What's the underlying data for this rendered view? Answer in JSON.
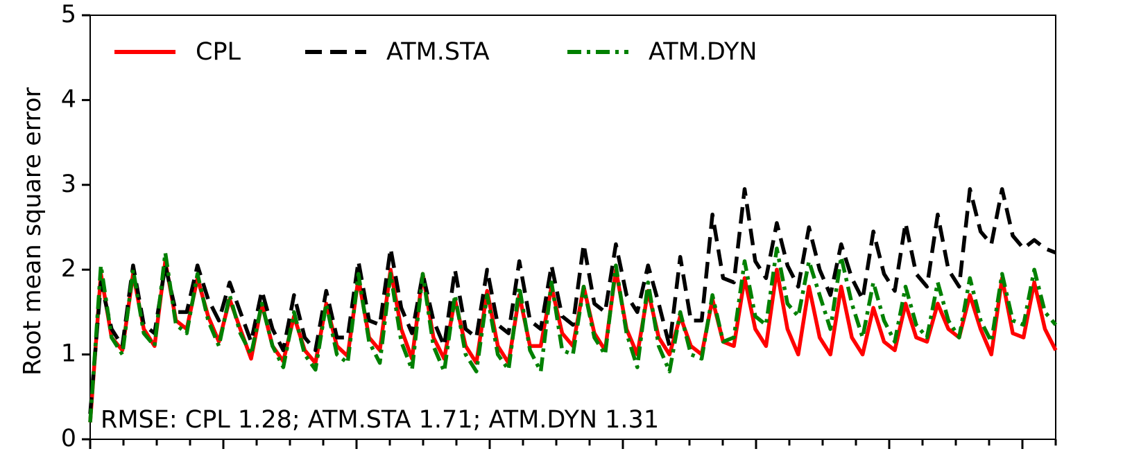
{
  "chart_data": {
    "type": "line",
    "y_label": "Root mean square error",
    "annotation": "RMSE: CPL 1.28; ATM.STA 1.71; ATM.DYN 1.31",
    "categories": [
      null,
      null,
      null,
      null,
      null,
      null,
      null,
      null,
      null,
      null,
      null,
      null,
      null,
      null,
      null,
      null,
      null,
      null,
      null,
      null,
      null,
      null,
      null,
      null,
      null,
      null,
      null,
      null,
      null,
      null,
      null,
      null,
      null,
      null,
      null,
      null,
      null,
      null,
      null,
      null,
      null,
      null,
      null,
      null,
      null,
      null,
      null,
      null,
      null,
      null,
      null,
      null,
      null,
      null,
      null,
      null,
      null,
      null,
      null,
      null,
      null,
      null,
      null,
      null,
      null,
      null,
      null,
      null,
      null,
      null,
      null,
      null,
      null,
      null,
      null,
      null,
      null,
      null,
      null,
      null,
      null,
      null,
      null,
      null,
      null,
      null,
      null,
      null,
      null,
      null,
      null
    ],
    "ylim": [
      0,
      5
    ],
    "yticks": [
      0,
      1,
      2,
      3,
      4,
      5
    ],
    "legend": "top",
    "series": [
      {
        "name": "CPL",
        "color": "#ff0000",
        "linestyle": "solid",
        "values": [
          0.2,
          1.95,
          1.2,
          1.05,
          1.95,
          1.3,
          1.1,
          2.1,
          1.4,
          1.3,
          1.9,
          1.45,
          1.15,
          1.65,
          1.3,
          0.95,
          1.6,
          1.1,
          0.92,
          1.45,
          1.05,
          0.9,
          1.6,
          1.1,
          0.98,
          1.9,
          1.2,
          1.05,
          2.0,
          1.3,
          0.95,
          1.95,
          1.2,
          0.95,
          1.65,
          1.1,
          0.9,
          1.75,
          1.1,
          0.9,
          1.7,
          1.1,
          1.1,
          1.8,
          1.25,
          1.1,
          1.8,
          1.25,
          1.05,
          2.0,
          1.3,
          1.0,
          1.75,
          1.2,
          1.0,
          1.45,
          1.1,
          1.0,
          1.65,
          1.15,
          1.1,
          1.9,
          1.3,
          1.1,
          2.0,
          1.3,
          1.0,
          1.8,
          1.2,
          1.0,
          1.8,
          1.2,
          1.0,
          1.55,
          1.15,
          1.05,
          1.6,
          1.2,
          1.15,
          1.6,
          1.3,
          1.2,
          1.7,
          1.3,
          1.0,
          1.9,
          1.25,
          1.2,
          1.85,
          1.3,
          1.05
        ]
      },
      {
        "name": "ATM.STA",
        "color": "#000000",
        "linestyle": "dashed",
        "values": [
          0.3,
          1.85,
          1.3,
          1.1,
          2.05,
          1.35,
          1.25,
          2.05,
          1.5,
          1.5,
          2.05,
          1.65,
          1.4,
          1.85,
          1.5,
          1.15,
          1.75,
          1.3,
          1.05,
          1.7,
          1.2,
          1.05,
          1.75,
          1.2,
          1.2,
          2.1,
          1.4,
          1.35,
          2.25,
          1.55,
          1.25,
          1.95,
          1.4,
          1.1,
          2.0,
          1.3,
          1.2,
          2.0,
          1.35,
          1.25,
          2.1,
          1.4,
          1.3,
          2.05,
          1.45,
          1.35,
          2.3,
          1.6,
          1.5,
          2.3,
          1.7,
          1.5,
          2.05,
          1.6,
          1.1,
          2.15,
          1.4,
          1.4,
          2.65,
          1.9,
          1.85,
          2.95,
          2.1,
          1.9,
          2.55,
          2.05,
          1.8,
          2.5,
          2.0,
          1.7,
          2.3,
          1.9,
          1.65,
          2.45,
          1.95,
          1.75,
          2.55,
          1.95,
          1.8,
          2.65,
          2.0,
          1.8,
          2.95,
          2.45,
          2.3,
          2.95,
          2.4,
          2.25,
          2.35,
          2.25,
          2.2
        ]
      },
      {
        "name": "ATM.DYN",
        "color": "#008000",
        "linestyle": "dashdot",
        "values": [
          0.2,
          2.05,
          1.2,
          1.0,
          2.0,
          1.25,
          1.1,
          2.2,
          1.35,
          1.25,
          1.95,
          1.4,
          1.1,
          1.7,
          1.25,
          1.0,
          1.6,
          1.1,
          0.85,
          1.5,
          1.0,
          0.82,
          1.6,
          1.0,
          0.9,
          1.95,
          1.15,
          0.9,
          1.95,
          1.15,
          0.82,
          1.95,
          1.1,
          0.8,
          1.7,
          1.0,
          0.8,
          1.7,
          1.0,
          0.82,
          1.8,
          1.05,
          0.8,
          1.85,
          1.05,
          1.0,
          1.8,
          1.2,
          1.0,
          2.05,
          1.25,
          0.85,
          1.85,
          1.1,
          0.8,
          1.5,
          1.0,
          0.95,
          1.7,
          1.15,
          1.2,
          2.1,
          1.45,
          1.35,
          2.25,
          1.6,
          1.45,
          2.1,
          1.7,
          1.3,
          2.15,
          1.6,
          1.2,
          1.85,
          1.4,
          1.15,
          1.8,
          1.35,
          1.2,
          1.85,
          1.4,
          1.2,
          1.9,
          1.4,
          1.15,
          1.95,
          1.4,
          1.35,
          2.0,
          1.5,
          1.35
        ]
      }
    ]
  }
}
